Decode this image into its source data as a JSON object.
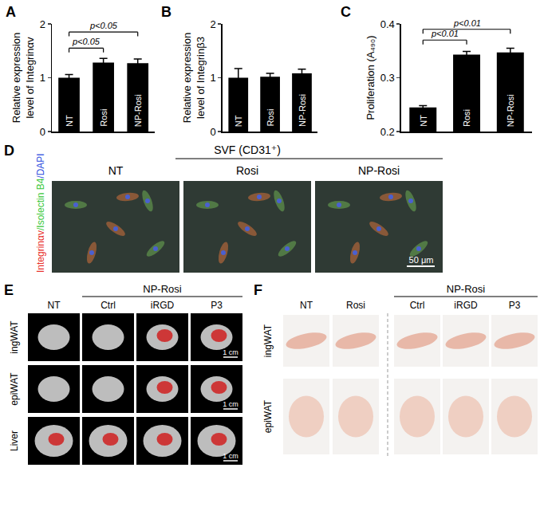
{
  "chart_data": [
    {
      "type": "bar",
      "label": "A",
      "categories": [
        "NT",
        "Rosi",
        "NP-Rosi"
      ],
      "values": [
        1.0,
        1.28,
        1.27
      ],
      "errors": [
        0.06,
        0.08,
        0.08
      ],
      "color": "#000000",
      "ylabel": "Relative expression level of Integrinαv",
      "ylim": [
        0,
        2
      ],
      "yticks": [
        0,
        1,
        2
      ],
      "tick_labels": "y",
      "comparisons": [
        {
          "from": "NT",
          "to": "Rosi",
          "y": 1.55,
          "text": "p<0.05"
        },
        {
          "from": "NT",
          "to": "NP-Rosi",
          "y": 1.85,
          "text": "p<0.05"
        }
      ]
    },
    {
      "type": "bar",
      "label": "B",
      "categories": [
        "NT",
        "Rosi",
        "NP-Rosi"
      ],
      "values": [
        1.0,
        1.02,
        1.08
      ],
      "errors": [
        0.17,
        0.06,
        0.08
      ],
      "color": "#000000",
      "ylabel": "Relative expression level of Integrinβ3",
      "ylim": [
        0,
        2
      ],
      "yticks": [
        0,
        1,
        2
      ],
      "tick_labels": "y"
    },
    {
      "type": "bar",
      "label": "C",
      "categories": [
        "NT",
        "Rosi",
        "NP-Rosi"
      ],
      "values": [
        0.245,
        0.343,
        0.347
      ],
      "errors": [
        0.003,
        0.006,
        0.008
      ],
      "color": "#000000",
      "ylabel": "Proliferation (A₄₉₀)",
      "ylim": [
        0.2,
        0.4
      ],
      "yticks": [
        0.2,
        0.3,
        0.4
      ],
      "tick_labels": "y",
      "comparisons": [
        {
          "from": "NT",
          "to": "Rosi",
          "y": 0.37,
          "text": "p<0.01"
        },
        {
          "from": "NT",
          "to": "NP-Rosi",
          "y": 0.39,
          "text": "p<0.01"
        }
      ]
    }
  ],
  "panels": {
    "D": {
      "label": "D",
      "title": "SVF (CD31⁺)",
      "columns": [
        "NT",
        "Rosi",
        "NP-Rosi"
      ],
      "stains": [
        {
          "text": "Integrinαv",
          "color": "#e8302a"
        },
        {
          "text": "/Isolectin B4",
          "color": "#3cc83c"
        },
        {
          "text": "/DAPI",
          "color": "#3050e0"
        }
      ],
      "scale_bar": "50 μm"
    },
    "E": {
      "label": "E",
      "columns": [
        "NT",
        "Ctrl",
        "iRGD",
        "P3"
      ],
      "group": {
        "text": "NP-Rosi",
        "columns": [
          "Ctrl",
          "iRGD",
          "P3"
        ]
      },
      "rows": [
        "ingWAT",
        "epiWAT",
        "Liver"
      ],
      "scale_bar": "1 cm"
    },
    "F": {
      "label": "F",
      "columns": [
        "NT",
        "Rosi",
        "Ctrl",
        "iRGD",
        "P3"
      ],
      "group": {
        "text": "NP-Rosi",
        "columns": [
          "Ctrl",
          "iRGD",
          "P3"
        ]
      },
      "rows": [
        "ingWAT",
        "epiWAT"
      ]
    }
  }
}
